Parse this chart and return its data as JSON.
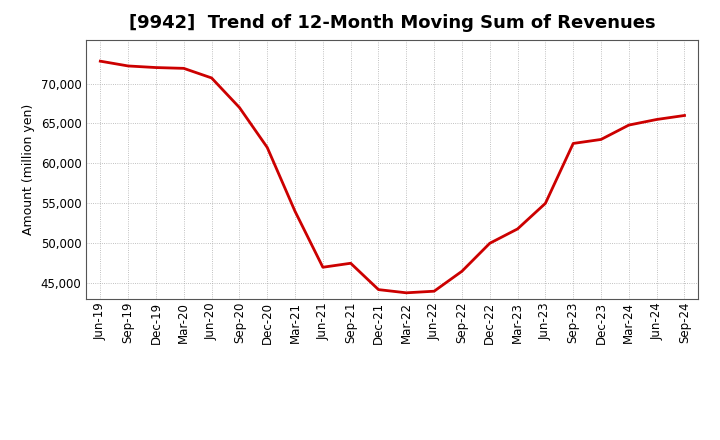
{
  "title": "[9942]  Trend of 12-Month Moving Sum of Revenues",
  "ylabel": "Amount (million yen)",
  "line_color": "#cc0000",
  "background_color": "#ffffff",
  "plot_bg_color": "#ffffff",
  "grid_color": "#999999",
  "ylim": [
    43000,
    75500
  ],
  "yticks": [
    45000,
    50000,
    55000,
    60000,
    65000,
    70000
  ],
  "x_labels": [
    "Jun-19",
    "Sep-19",
    "Dec-19",
    "Mar-20",
    "Jun-20",
    "Sep-20",
    "Dec-20",
    "Mar-21",
    "Jun-21",
    "Sep-21",
    "Dec-21",
    "Mar-22",
    "Jun-22",
    "Sep-22",
    "Dec-22",
    "Mar-23",
    "Jun-23",
    "Sep-23",
    "Dec-23",
    "Mar-24",
    "Jun-24",
    "Sep-24"
  ],
  "values": [
    72800,
    72200,
    72000,
    71900,
    70700,
    67000,
    62000,
    54000,
    47000,
    47500,
    44200,
    43800,
    44000,
    46500,
    50000,
    51800,
    55000,
    62500,
    63000,
    64800,
    65500,
    66000
  ],
  "title_fontsize": 13,
  "ylabel_fontsize": 9,
  "tick_fontsize": 8.5,
  "line_width": 2.0
}
